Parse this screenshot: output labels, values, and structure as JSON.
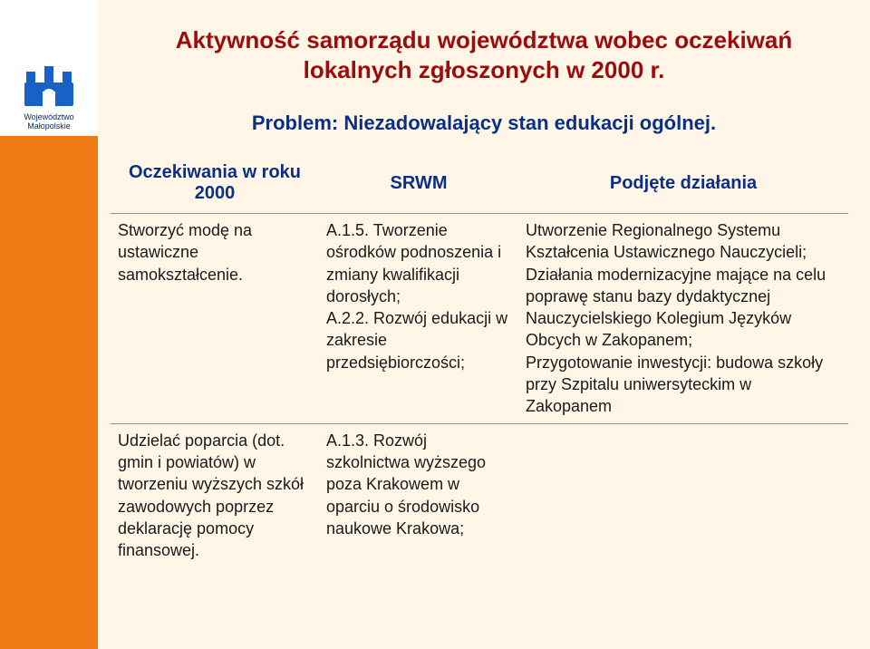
{
  "colors": {
    "slide_bg": "#fff6e8",
    "sidebar_top_bg": "#ffffff",
    "sidebar_bar_bg": "#ee7a16",
    "title_color": "#9b0d0d",
    "subtitle_color": "#0b2f82",
    "header_color": "#0b2f82",
    "body_text": "#1a1a1a",
    "rule_color": "#ee7a16",
    "logo_blue": "#1a60c9",
    "logo_text_color": "#0a2a6a"
  },
  "typography": {
    "title_fontsize": 26,
    "subtitle_fontsize": 22,
    "header_fontsize": 20,
    "body_fontsize": 18
  },
  "logo": {
    "line1": "Województwo",
    "line2": "Małopolskie"
  },
  "title": "Aktywność samorządu województwa wobec oczekiwań lokalnych zgłoszonych w 2000 r.",
  "subtitle": "Problem: Niezadowalający stan edukacji ogólnej.",
  "table": {
    "headers": [
      "Oczekiwania w roku 2000",
      "SRWM",
      "Podjęte działania"
    ],
    "rows": [
      {
        "c0": "Stworzyć modę na ustawiczne samokształcenie.",
        "c1": "A.1.5. Tworzenie ośrodków podnoszenia i zmiany kwalifikacji dorosłych;\nA.2.2. Rozwój edukacji w zakresie przedsiębiorczości;",
        "c2": "Utworzenie Regionalnego Systemu Kształcenia Ustawicznego Nauczycieli;\nDziałania modernizacyjne mające na celu poprawę stanu bazy dydaktycznej Nauczycielskiego Kolegium Języków Obcych w Zakopanem;\nPrzygotowanie inwestycji: budowa szkoły przy Szpitalu uniwersyteckim w Zakopanem"
      },
      {
        "c0": "Udzielać poparcia (dot. gmin i powiatów) w tworzeniu wyższych szkół zawodowych poprzez deklarację pomocy finansowej.",
        "c1": "A.1.3. Rozwój szkolnictwa wyższego poza Krakowem w oparciu o środowisko naukowe Krakowa;",
        "c2": ""
      }
    ]
  }
}
